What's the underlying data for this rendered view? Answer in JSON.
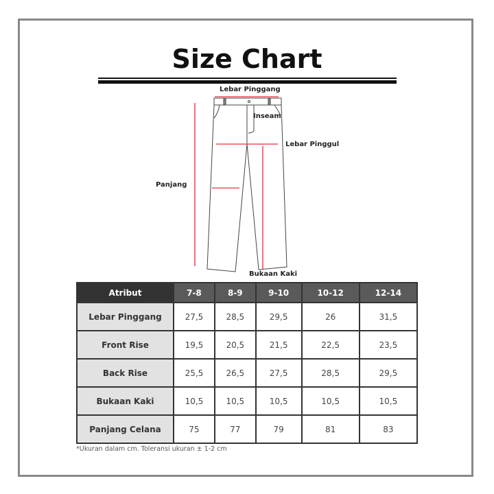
{
  "title": "Size Chart",
  "diagram": {
    "labels": {
      "waist": "Lebar Pinggang",
      "inseam": "Inseam",
      "hip": "Lebar Pinggul",
      "length": "Panjang",
      "leg_opening": "Bukaan Kaki"
    },
    "measure_color": "#e0303a"
  },
  "table": {
    "headers": [
      "Atribut",
      "7-8",
      "8-9",
      "9-10",
      "10-12",
      "12-14"
    ],
    "rows": [
      {
        "label": "Lebar Pinggang",
        "values": [
          "27,5",
          "28,5",
          "29,5",
          "26",
          "31,5"
        ]
      },
      {
        "label": "Front Rise",
        "values": [
          "19,5",
          "20,5",
          "21,5",
          "22,5",
          "23,5"
        ]
      },
      {
        "label": "Back Rise",
        "values": [
          "25,5",
          "26,5",
          "27,5",
          "28,5",
          "29,5"
        ]
      },
      {
        "label": "Bukaan Kaki",
        "values": [
          "10,5",
          "10,5",
          "10,5",
          "10,5",
          "10,5"
        ]
      },
      {
        "label": "Panjang Celana",
        "values": [
          "75",
          "77",
          "79",
          "81",
          "83"
        ]
      }
    ]
  },
  "note": "*Ukuran dalam cm. Toleransi ukuran ± 1-2 cm"
}
